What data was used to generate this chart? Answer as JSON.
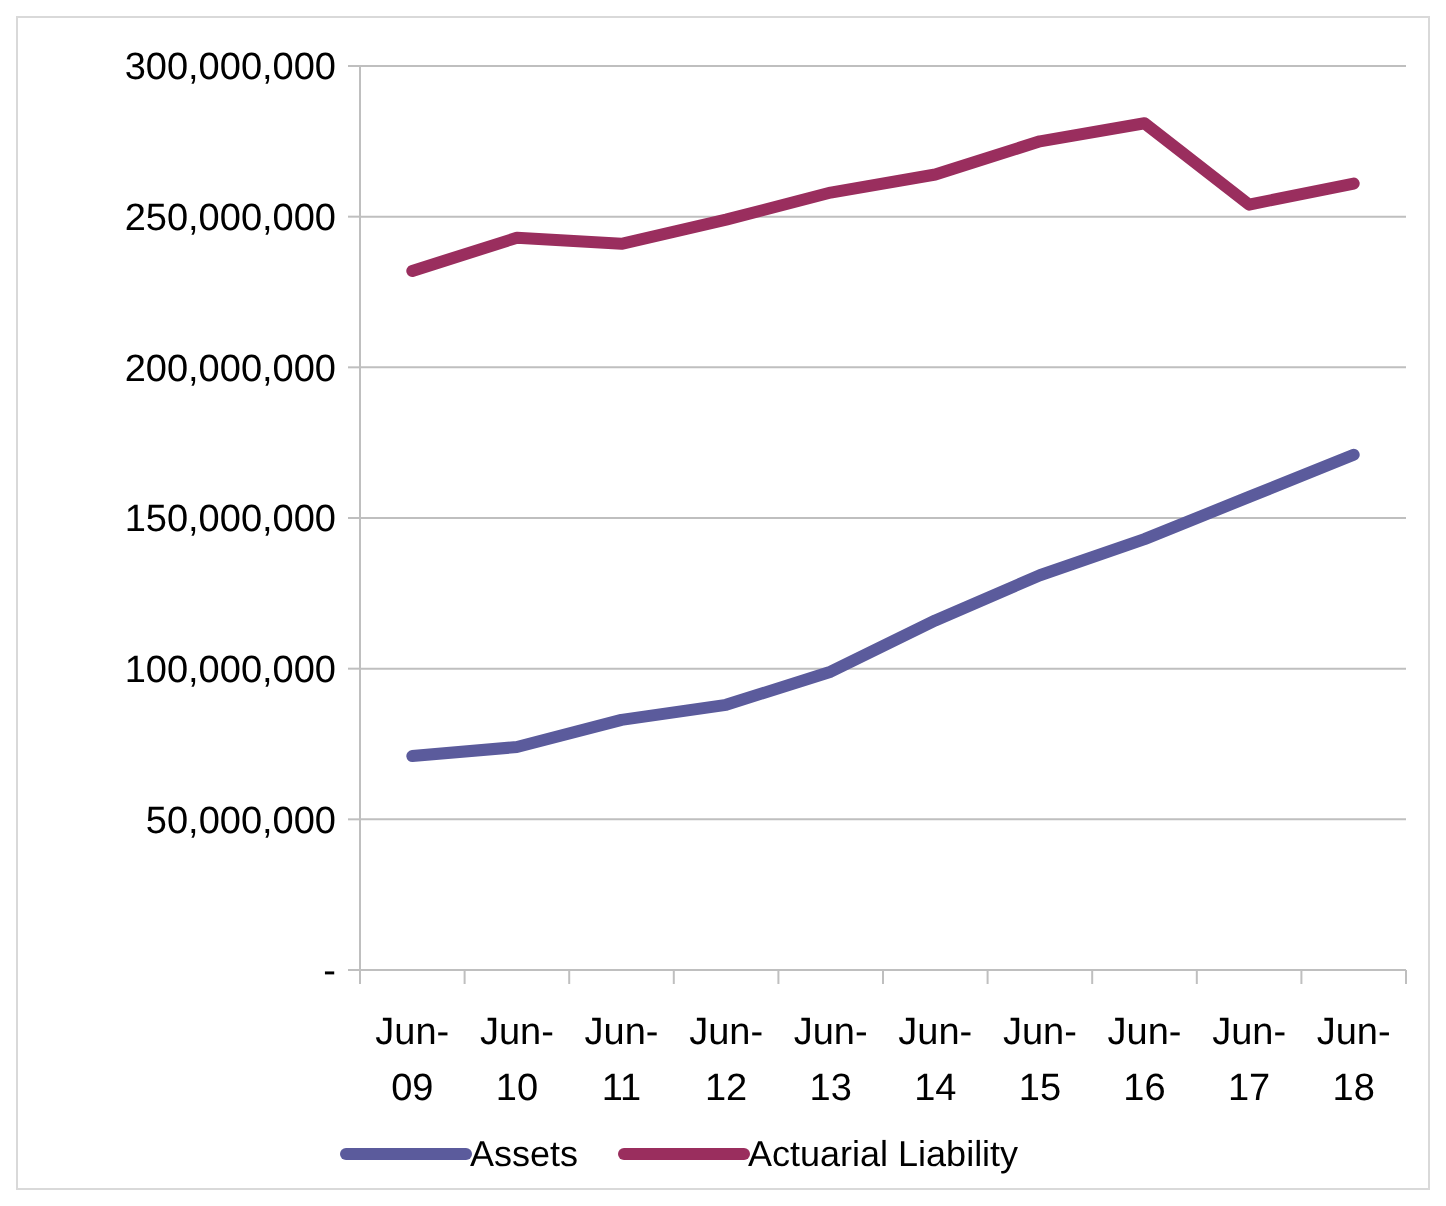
{
  "chart_data": {
    "type": "line",
    "categories": [
      "Jun-09",
      "Jun-10",
      "Jun-11",
      "Jun-12",
      "Jun-13",
      "Jun-14",
      "Jun-15",
      "Jun-16",
      "Jun-17",
      "Jun-18"
    ],
    "series": [
      {
        "name": "Assets",
        "color": "#5b5b9c",
        "values": [
          71000000,
          74000000,
          83000000,
          88000000,
          99000000,
          116000000,
          131000000,
          143000000,
          157000000,
          171000000
        ]
      },
      {
        "name": "Actuarial Liability",
        "color": "#9a2e5e",
        "values": [
          232000000,
          243000000,
          241000000,
          249000000,
          258000000,
          264000000,
          275000000,
          281000000,
          254000000,
          261000000
        ]
      }
    ],
    "ylim": [
      0,
      300000000
    ],
    "yticks": [
      {
        "value": 0,
        "label": "-"
      },
      {
        "value": 50000000,
        "label": "50,000,000"
      },
      {
        "value": 100000000,
        "label": "100,000,000"
      },
      {
        "value": 150000000,
        "label": "150,000,000"
      },
      {
        "value": 200000000,
        "label": "200,000,000"
      },
      {
        "value": 250000000,
        "label": "250,000,000"
      },
      {
        "value": 300000000,
        "label": "300,000,000"
      }
    ],
    "grid": "y",
    "legend": "bottom",
    "marker": "none",
    "line_style": "solid"
  }
}
